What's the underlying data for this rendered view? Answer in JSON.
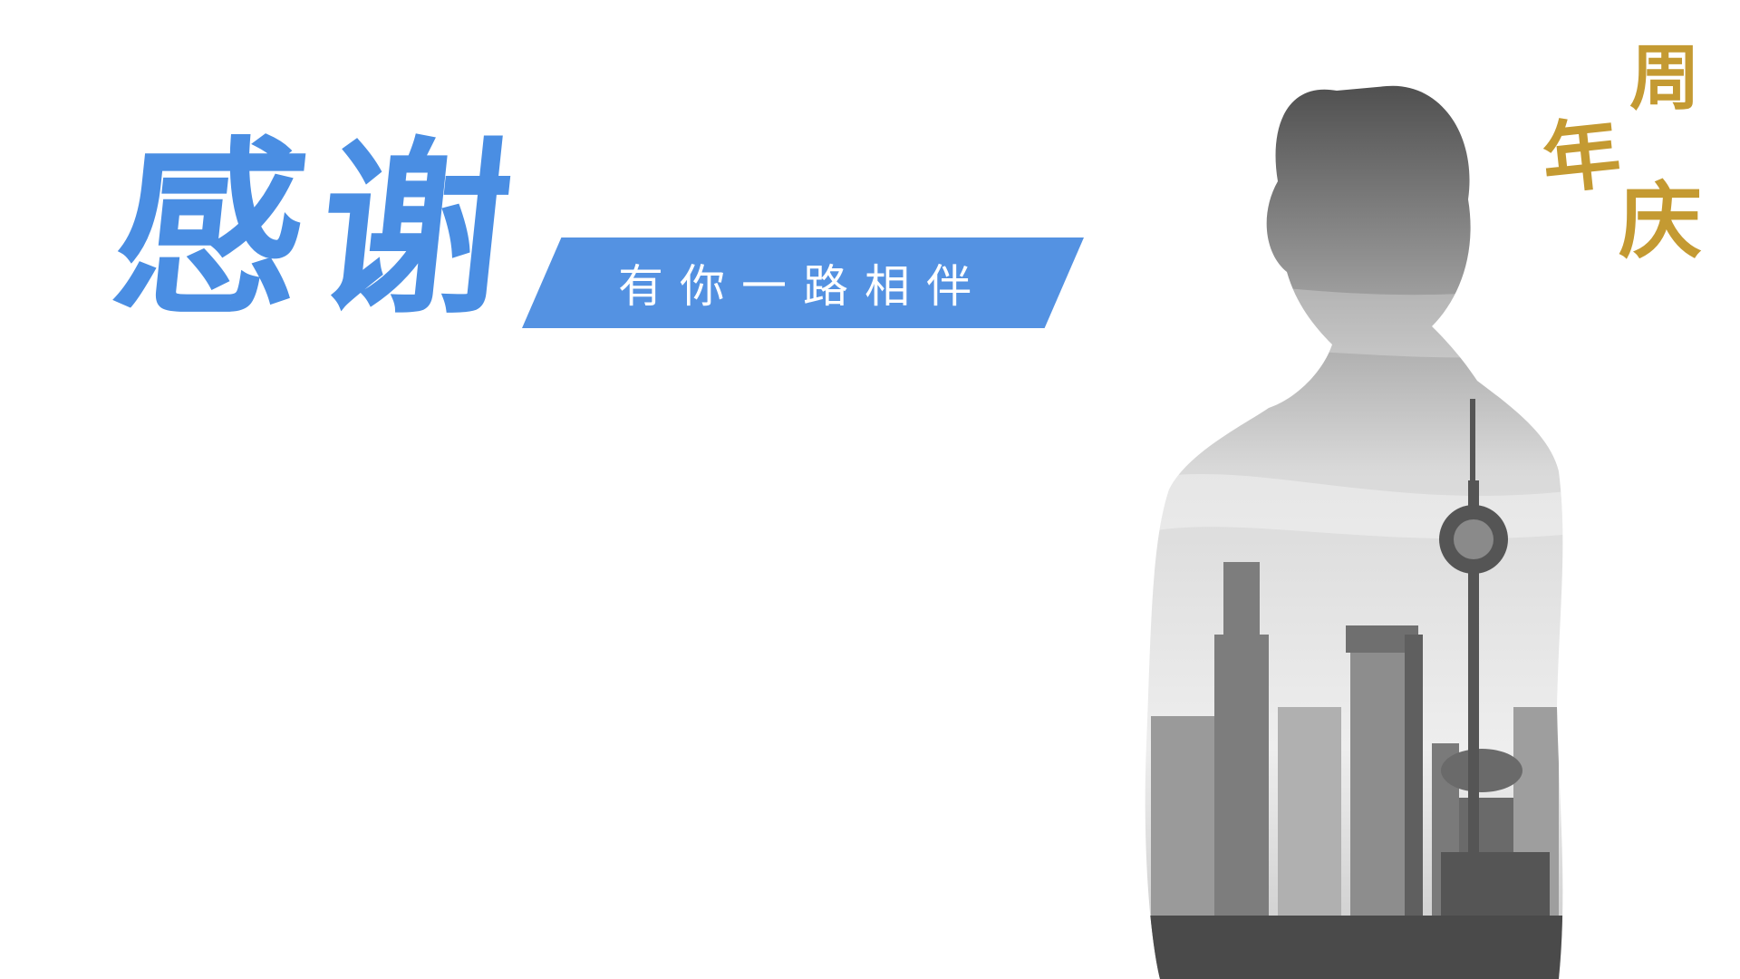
{
  "slide": {
    "title": "感谢",
    "subtitle": "有你一路相伴",
    "badge_char_1": "周",
    "badge_char_2": "年",
    "badge_char_3": "庆"
  },
  "colors": {
    "title": "#4a8ee3",
    "banner": "#5492e2",
    "badge": "#c49a32"
  },
  "image": {
    "icon": "city-skyline-silhouette-icon"
  }
}
